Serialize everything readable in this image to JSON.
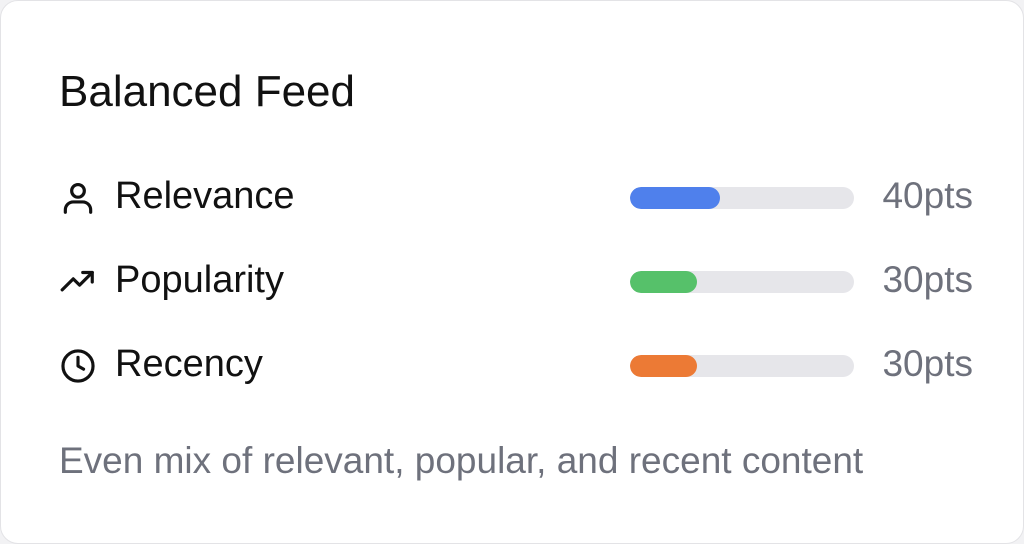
{
  "card": {
    "title": "Balanced Feed",
    "factors": [
      {
        "label": "Relevance",
        "value_text": "40pts",
        "points": 40,
        "max_points": 100,
        "color": "#4f80ec",
        "icon": "person-icon"
      },
      {
        "label": "Popularity",
        "value_text": "30pts",
        "points": 30,
        "max_points": 100,
        "color": "#56c16a",
        "icon": "trending-up-icon"
      },
      {
        "label": "Recency",
        "value_text": "30pts",
        "points": 30,
        "max_points": 100,
        "color": "#ec7a35",
        "icon": "clock-icon"
      }
    ],
    "description": "Even mix of relevant, popular, and recent content"
  }
}
